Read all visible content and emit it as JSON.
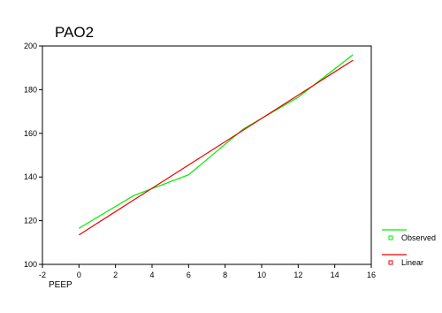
{
  "chart_data": {
    "type": "line",
    "title": "PAO2",
    "xlabel": "PEEP",
    "ylabel": "",
    "xlim": [
      -2,
      16
    ],
    "ylim": [
      100,
      200
    ],
    "xticks": [
      "-2",
      "0",
      "2",
      "4",
      "6",
      "8",
      "10",
      "12",
      "14",
      "16"
    ],
    "yticks": [
      "100",
      "120",
      "140",
      "160",
      "180",
      "200"
    ],
    "grid": false,
    "legend_position": "right",
    "series": [
      {
        "name": "Observed",
        "color": "#00ee00",
        "marker": "square-open",
        "x": [
          0,
          3,
          6,
          9,
          12,
          15
        ],
        "y": [
          116.5,
          131.5,
          141,
          162,
          176.5,
          196
        ]
      },
      {
        "name": "Linear",
        "color": "#ee0000",
        "marker": "square-open",
        "x": [
          0,
          3,
          6,
          9,
          12,
          15
        ],
        "y": [
          113.5,
          129.5,
          145.5,
          161.5,
          177.5,
          193.5
        ]
      }
    ]
  }
}
